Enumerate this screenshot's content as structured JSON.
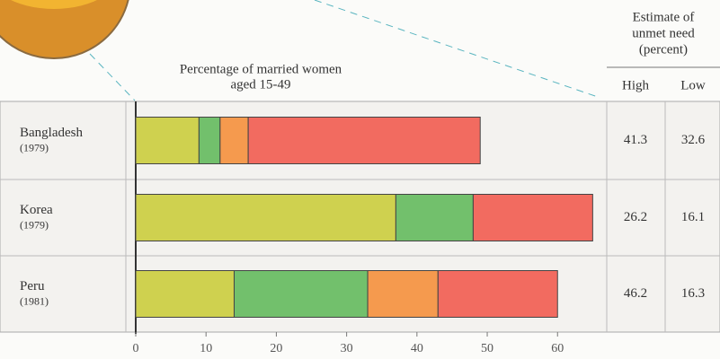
{
  "chart_data": {
    "type": "bar",
    "orientation": "horizontal",
    "stacked": true,
    "title": [
      "Percentage of married women",
      "aged 15-49"
    ],
    "categories": [
      "Bangladesh",
      "Korea",
      "Peru"
    ],
    "years": [
      "(1979)",
      "(1979)",
      "(1981)"
    ],
    "series": [
      {
        "color": "#cfd14f",
        "values": [
          9,
          37,
          14
        ]
      },
      {
        "color": "#72c06c",
        "values": [
          3,
          11,
          19
        ]
      },
      {
        "color": "#f59a4e",
        "values": [
          4,
          0,
          10
        ]
      },
      {
        "color": "#f26b60",
        "values": [
          33,
          17,
          17
        ]
      }
    ],
    "xlim": [
      0,
      67
    ],
    "xticks": [
      0,
      10,
      20,
      30,
      40,
      50,
      60
    ],
    "table": {
      "title": [
        "Estimate of",
        "unmet need",
        "(percent)"
      ],
      "columns": [
        "High",
        "Low"
      ],
      "rows": [
        [
          41.3,
          32.6
        ],
        [
          26.2,
          16.1
        ],
        [
          46.2,
          16.3
        ]
      ]
    }
  }
}
